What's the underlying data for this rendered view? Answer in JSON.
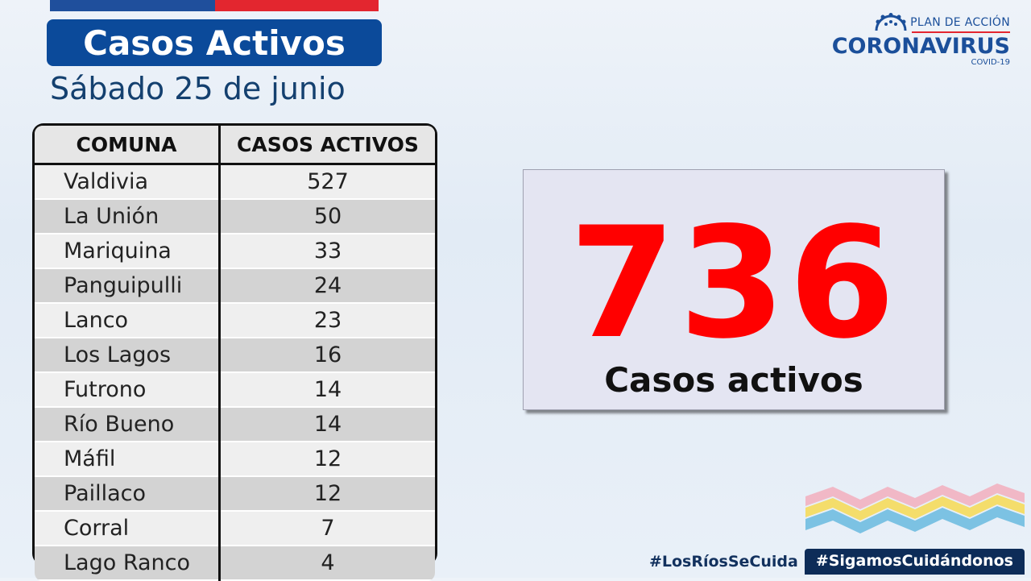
{
  "header": {
    "title": "Casos Activos",
    "date": "Sábado 25 de junio"
  },
  "logo": {
    "plan": "PLAN DE ACCIÓN",
    "name": "CORONAVIRUS",
    "sub": "COVID-19"
  },
  "table": {
    "headers": [
      "COMUNA",
      "CASOS ACTIVOS"
    ],
    "rows": [
      {
        "comuna": "Valdivia",
        "casos": "527"
      },
      {
        "comuna": "La Unión",
        "casos": "50"
      },
      {
        "comuna": "Mariquina",
        "casos": "33"
      },
      {
        "comuna": "Panguipulli",
        "casos": "24"
      },
      {
        "comuna": "Lanco",
        "casos": "23"
      },
      {
        "comuna": "Los Lagos",
        "casos": "16"
      },
      {
        "comuna": "Futrono",
        "casos": "14"
      },
      {
        "comuna": "Río Bueno",
        "casos": "14"
      },
      {
        "comuna": "Máfil",
        "casos": "12"
      },
      {
        "comuna": "Paillaco",
        "casos": "12"
      },
      {
        "comuna": "Corral",
        "casos": "7"
      },
      {
        "comuna": "Lago Ranco",
        "casos": "4"
      }
    ]
  },
  "summary": {
    "total": "736",
    "label": "Casos activos"
  },
  "footer": {
    "tag1": "#LosRíosSeCuida",
    "tag2": "#SigamosCuidándonos"
  },
  "colors": {
    "brand_blue": "#0b4a9a",
    "accent_red": "#ff0000"
  }
}
